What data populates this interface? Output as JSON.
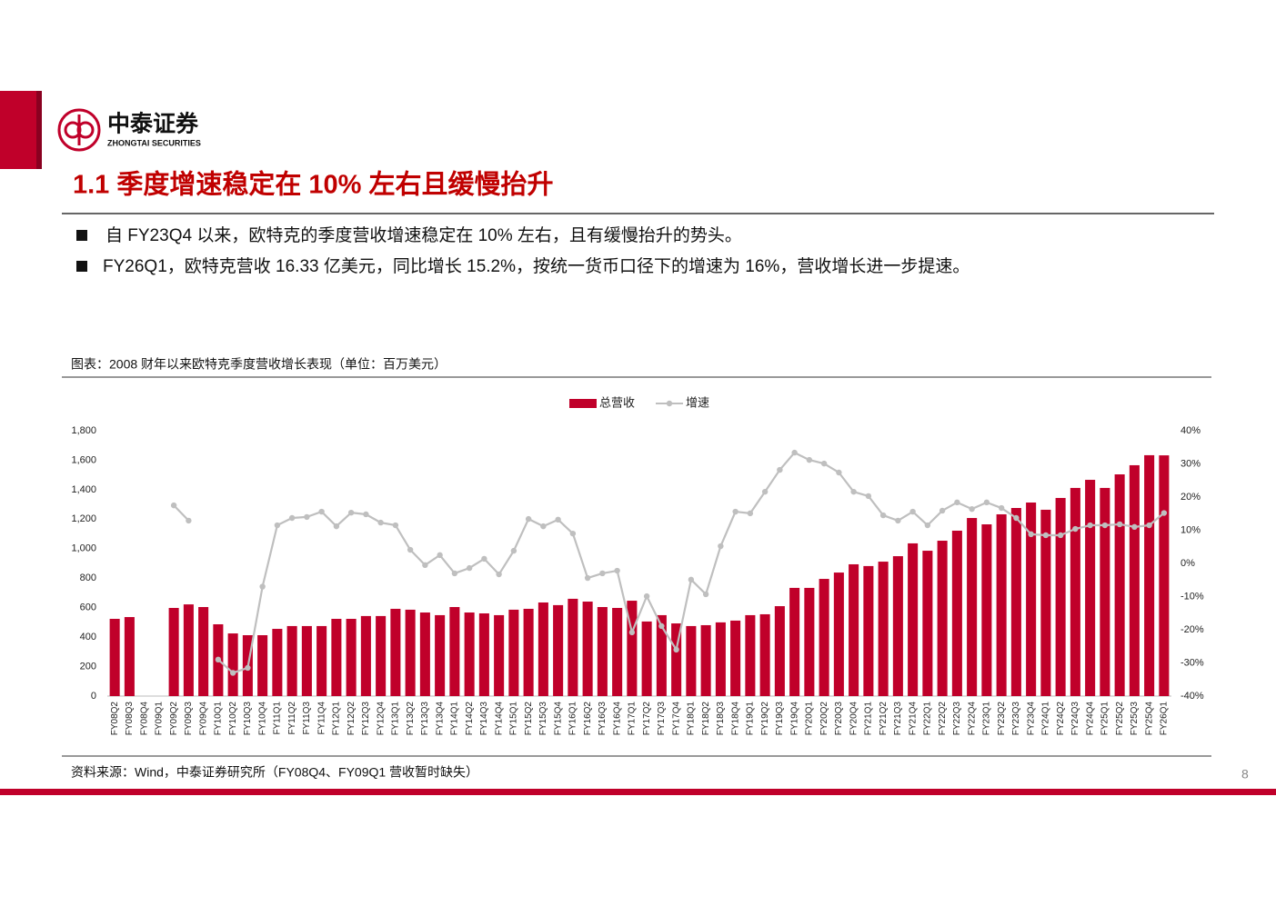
{
  "header": {
    "logo_cn": "中泰证券",
    "logo_en": "ZHONGTAI SECURITIES"
  },
  "title": "1.1 季度增速稳定在 10% 左右且缓慢抬升",
  "bullets": [
    "自 FY23Q4 以来，欧特克的季度营收增速稳定在 10% 左右，且有缓慢抬升的势头。",
    "FY26Q1，欧特克营收 16.33 亿美元，同比增长 15.2%，按统一货币口径下的增速为 16%，营收增长进一步提速。"
  ],
  "chart_data": {
    "type": "combo",
    "title": "图表：2008 财年以来欧特克季度营收增长表现（单位：百万美元）",
    "legend": "top",
    "categories": [
      "FY08Q2",
      "FY08Q3",
      "FY08Q4",
      "FY09Q1",
      "FY09Q2",
      "FY09Q3",
      "FY09Q4",
      "FY10Q1",
      "FY10Q2",
      "FY10Q3",
      "FY10Q4",
      "FY11Q1",
      "FY11Q2",
      "FY11Q3",
      "FY11Q4",
      "FY12Q1",
      "FY12Q2",
      "FY12Q3",
      "FY12Q4",
      "FY13Q1",
      "FY13Q2",
      "FY13Q3",
      "FY13Q4",
      "FY14Q1",
      "FY14Q2",
      "FY14Q3",
      "FY14Q4",
      "FY15Q1",
      "FY15Q2",
      "FY15Q3",
      "FY15Q4",
      "FY16Q1",
      "FY16Q2",
      "FY16Q3",
      "FY16Q4",
      "FY17Q1",
      "FY17Q2",
      "FY17Q3",
      "FY17Q4",
      "FY18Q1",
      "FY18Q2",
      "FY18Q3",
      "FY18Q4",
      "FY19Q1",
      "FY19Q2",
      "FY19Q3",
      "FY19Q4",
      "FY20Q1",
      "FY20Q2",
      "FY20Q3",
      "FY20Q4",
      "FY21Q1",
      "FY21Q2",
      "FY21Q3",
      "FY21Q4",
      "FY22Q1",
      "FY22Q2",
      "FY22Q3",
      "FY22Q4",
      "FY23Q1",
      "FY23Q2",
      "FY23Q3",
      "FY23Q4",
      "FY24Q1",
      "FY24Q2",
      "FY24Q3",
      "FY24Q4",
      "FY25Q1",
      "FY25Q2",
      "FY25Q3",
      "FY25Q4",
      "FY26Q1"
    ],
    "series": [
      {
        "name": "总营收",
        "type": "bar",
        "color": "#c0002a",
        "values": [
          524,
          536,
          null,
          null,
          598,
          622,
          604,
          487,
          425,
          413,
          413,
          456,
          475,
          475,
          475,
          524,
          524,
          543,
          543,
          592,
          586,
          567,
          549,
          604,
          567,
          561,
          549,
          586,
          592,
          635,
          617,
          660,
          641,
          604,
          598,
          647,
          506,
          549,
          493,
          475,
          481,
          500,
          512,
          549,
          555,
          610,
          734,
          734,
          795,
          838,
          894,
          882,
          912,
          949,
          1036,
          986,
          1054,
          1122,
          1208,
          1165,
          1233,
          1276,
          1313,
          1264,
          1344,
          1412,
          1467,
          1412,
          1504,
          1566,
          1634,
          1633
        ]
      },
      {
        "name": "增速",
        "type": "line",
        "axis": "y2",
        "color": "#bfbfbf",
        "values": [
          null,
          null,
          null,
          null,
          17.5,
          12.9,
          null,
          -29,
          -33,
          -31.5,
          -7,
          11.5,
          13.7,
          14,
          15.6,
          11.2,
          15.3,
          14.8,
          12.3,
          11.5,
          4.1,
          -0.5,
          2.5,
          -3,
          -1.4,
          1.4,
          -3.3,
          3.8,
          13.4,
          11.2,
          13.2,
          9,
          -4.4,
          -3,
          -2.2,
          -20.8,
          -9.9,
          -18.9,
          -26,
          -4.9,
          -9.3,
          5.2,
          15.6,
          15.1,
          21.6,
          28.2,
          33.4,
          31.2,
          30.1,
          27.4,
          21.6,
          20.3,
          14.5,
          12.9,
          15.6,
          11.5,
          15.9,
          18.4,
          16.4,
          18.4,
          16.7,
          13.7,
          8.8,
          8.5,
          8.5,
          10.4,
          11.5,
          11.5,
          11.8,
          11,
          11.5,
          15.2
        ]
      }
    ],
    "ylim": [
      0,
      1800
    ],
    "yticks": [
      0,
      200,
      400,
      600,
      800,
      {
        "value": 1000,
        "label": "1,000"
      },
      {
        "value": 1200,
        "label": "1,200"
      },
      {
        "value": 1400,
        "label": "1,400"
      },
      {
        "value": 1600,
        "label": "1,600"
      },
      {
        "value": 1800,
        "label": "1,800"
      }
    ],
    "y2lim": [
      -40,
      40
    ],
    "y2ticks": [
      {
        "value": -40,
        "label": "-40%"
      },
      {
        "value": -30,
        "label": "-30%"
      },
      {
        "value": -20,
        "label": "-20%"
      },
      {
        "value": -10,
        "label": "-10%"
      },
      {
        "value": 0,
        "label": "0%"
      },
      {
        "value": 10,
        "label": "10%"
      },
      {
        "value": 20,
        "label": "20%"
      },
      {
        "value": 30,
        "label": "30%"
      },
      {
        "value": 40,
        "label": "40%"
      }
    ]
  },
  "source": "资料来源：Wind，中泰证券研究所（FY08Q4、FY09Q1 营收暂时缺失）",
  "page_number": "8"
}
